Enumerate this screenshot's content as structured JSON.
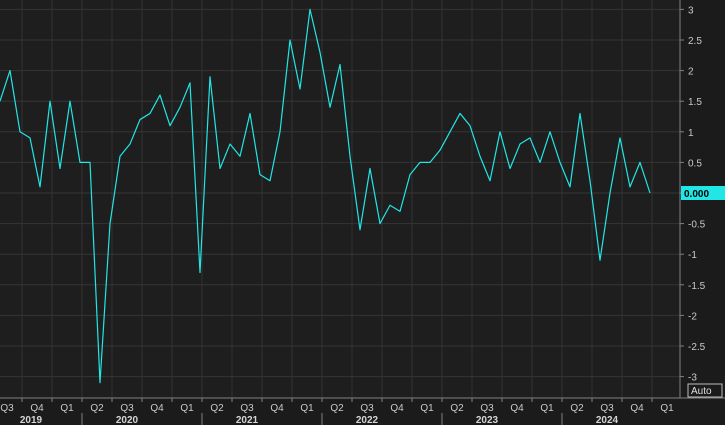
{
  "chart_data": {
    "type": "line",
    "title": "",
    "xlabel": "",
    "ylabel": "",
    "ylim": [
      -3.1,
      3.1
    ],
    "y_ticks": [
      3,
      2.5,
      2,
      1.5,
      1,
      0.5,
      0,
      -0.5,
      -1,
      -1.5,
      -2,
      -2.5,
      -3
    ],
    "y_tick_labels": [
      "3",
      "2.5",
      "2",
      "1.5",
      "1",
      "0.5",
      "",
      "-0.5",
      "-1",
      "-1.5",
      "-2",
      "-2.5",
      "-3"
    ],
    "last_value_label": "0.000",
    "auto_label": "Auto",
    "grid": true,
    "line_color": "#22e6e6",
    "quarter_labels": [
      "Q3",
      "Q4",
      "Q1",
      "Q2",
      "Q3",
      "Q4",
      "Q1",
      "Q2",
      "Q3",
      "Q4",
      "Q1",
      "Q2",
      "Q3",
      "Q4",
      "Q1",
      "Q2",
      "Q3",
      "Q4",
      "Q1",
      "Q2",
      "Q3",
      "Q4",
      "Q1"
    ],
    "year_labels": [
      {
        "label": "2019",
        "quarter_index": 0
      },
      {
        "label": "2020",
        "quarter_index": 4
      },
      {
        "label": "2021",
        "quarter_index": 8
      },
      {
        "label": "2022",
        "quarter_index": 12
      },
      {
        "label": "2023",
        "quarter_index": 16
      },
      {
        "label": "2024",
        "quarter_index": 20
      }
    ],
    "series": [
      {
        "values": [
          1.5,
          2.0,
          1.0,
          0.9,
          0.1,
          1.5,
          0.4,
          1.5,
          0.5,
          0.5,
          -3.1,
          -0.5,
          0.6,
          0.8,
          1.2,
          1.3,
          1.6,
          1.1,
          1.4,
          1.8,
          -1.3,
          1.9,
          0.4,
          0.8,
          0.6,
          1.3,
          0.3,
          0.2,
          1.0,
          2.5,
          1.7,
          3.0,
          2.3,
          1.4,
          2.1,
          0.6,
          -0.6,
          0.4,
          -0.5,
          -0.2,
          -0.3,
          0.3,
          0.5,
          0.5,
          0.7,
          1.0,
          1.3,
          1.1,
          0.6,
          0.2,
          1.0,
          0.4,
          0.8,
          0.9,
          0.5,
          1.0,
          0.5,
          0.1,
          1.3,
          0.2,
          -1.1,
          0.0,
          0.9,
          0.1,
          0.5,
          0.0
        ]
      }
    ]
  }
}
